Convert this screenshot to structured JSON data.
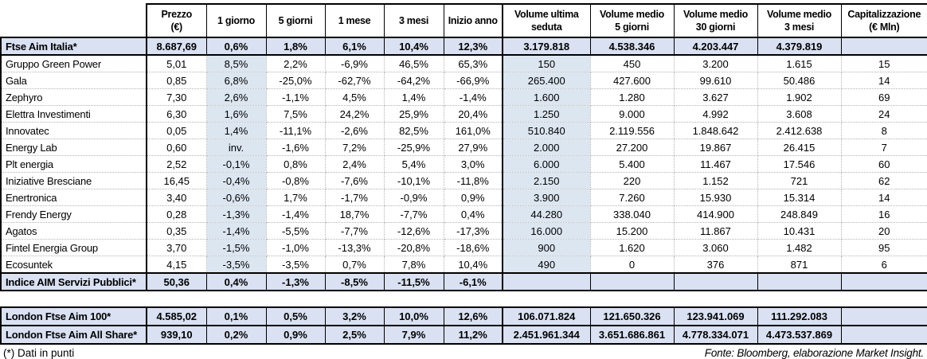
{
  "colors": {
    "row_highlight": "#d9e1f2",
    "col_highlight": "#dce6f1",
    "dotted_border": "#b3b3b3"
  },
  "table": {
    "columns": [
      {
        "key": "prezzo",
        "label": "Prezzo\n(€)"
      },
      {
        "key": "1-giorno",
        "label": "1 giorno"
      },
      {
        "key": "5-giorni",
        "label": "5 giorni"
      },
      {
        "key": "1-mese",
        "label": "1 mese"
      },
      {
        "key": "3-mesi",
        "label": "3 mesi"
      },
      {
        "key": "inizio-anno",
        "label": "Inizio anno"
      },
      {
        "key": "volume-ultima-seduta",
        "label": "Volume ultima\nseduta"
      },
      {
        "key": "volume-medio-5-giorni",
        "label": "Volume medio\n5 giorni"
      },
      {
        "key": "volume-medio-30-giorni",
        "label": "Volume medio\n30 giorni"
      },
      {
        "key": "volume-medio-3-mesi",
        "label": "Volume medio\n3 mesi"
      },
      {
        "key": "capitalizzazione",
        "label": "Capitalizzazione\n(€ Mln)"
      }
    ],
    "main_rows": [
      {
        "label": "Ftse Aim Italia*",
        "highlight": true,
        "values": [
          "8.687,69",
          "0,6%",
          "1,8%",
          "6,1%",
          "10,4%",
          "12,3%",
          "3.179.818",
          "4.538.346",
          "4.203.447",
          "4.379.819",
          ""
        ]
      },
      {
        "label": "Gruppo Green Power",
        "highlight": false,
        "values": [
          "5,01",
          "8,5%",
          "2,2%",
          "-6,9%",
          "46,5%",
          "65,3%",
          "150",
          "450",
          "3.200",
          "1.615",
          "15"
        ]
      },
      {
        "label": "Gala",
        "highlight": false,
        "values": [
          "0,85",
          "6,8%",
          "-25,0%",
          "-62,7%",
          "-64,2%",
          "-66,9%",
          "265.400",
          "427.600",
          "99.610",
          "50.486",
          "14"
        ]
      },
      {
        "label": "Zephyro",
        "highlight": false,
        "values": [
          "7,30",
          "2,6%",
          "-1,1%",
          "4,5%",
          "1,4%",
          "-1,4%",
          "1.600",
          "1.280",
          "3.627",
          "1.902",
          "69"
        ]
      },
      {
        "label": "Elettra Investimenti",
        "highlight": false,
        "values": [
          "6,30",
          "1,6%",
          "7,5%",
          "24,2%",
          "25,9%",
          "20,4%",
          "1.250",
          "9.000",
          "4.992",
          "3.608",
          "24"
        ]
      },
      {
        "label": "Innovatec",
        "highlight": false,
        "values": [
          "0,05",
          "1,4%",
          "-11,1%",
          "-2,6%",
          "82,5%",
          "161,0%",
          "510.840",
          "2.119.556",
          "1.848.642",
          "2.412.638",
          "8"
        ]
      },
      {
        "label": "Energy Lab",
        "highlight": false,
        "values": [
          "0,60",
          "inv.",
          "-1,6%",
          "7,2%",
          "-25,9%",
          "27,9%",
          "2.000",
          "27.200",
          "19.867",
          "26.415",
          "7"
        ]
      },
      {
        "label": "Plt energia",
        "highlight": false,
        "values": [
          "2,52",
          "-0,1%",
          "0,8%",
          "2,4%",
          "5,4%",
          "3,0%",
          "6.000",
          "5.400",
          "11.467",
          "17.546",
          "60"
        ]
      },
      {
        "label": "Iniziative Bresciane",
        "highlight": false,
        "values": [
          "16,45",
          "-0,4%",
          "-0,8%",
          "-7,6%",
          "-10,1%",
          "-11,8%",
          "2.150",
          "220",
          "1.152",
          "721",
          "62"
        ]
      },
      {
        "label": "Enertronica",
        "highlight": false,
        "values": [
          "3,40",
          "-0,6%",
          "1,7%",
          "-1,7%",
          "-0,9%",
          "0,9%",
          "3.900",
          "7.260",
          "15.930",
          "15.314",
          "14"
        ]
      },
      {
        "label": "Frendy Energy",
        "highlight": false,
        "values": [
          "0,28",
          "-1,3%",
          "-1,4%",
          "18,7%",
          "-7,7%",
          "0,4%",
          "44.280",
          "338.040",
          "414.900",
          "248.849",
          "16"
        ]
      },
      {
        "label": "Agatos",
        "highlight": false,
        "values": [
          "0,35",
          "-1,4%",
          "-5,5%",
          "-7,7%",
          "-12,6%",
          "-17,3%",
          "16.000",
          "15.200",
          "11.867",
          "10.431",
          "20"
        ]
      },
      {
        "label": "Fintel Energia Group",
        "highlight": false,
        "values": [
          "3,70",
          "-1,5%",
          "-1,0%",
          "-13,3%",
          "-20,8%",
          "-18,6%",
          "900",
          "1.620",
          "3.060",
          "1.482",
          "95"
        ]
      },
      {
        "label": "Ecosuntek",
        "highlight": false,
        "values": [
          "4,15",
          "-3,5%",
          "-3,5%",
          "0,7%",
          "7,8%",
          "10,4%",
          "490",
          "0",
          "376",
          "871",
          "6"
        ]
      },
      {
        "label": "Indice AIM Servizi Pubblici*",
        "highlight": true,
        "values": [
          "50,36",
          "0,4%",
          "-1,3%",
          "-8,5%",
          "-11,5%",
          "-6,1%",
          "",
          "",
          "",
          "",
          ""
        ]
      }
    ],
    "london_rows": [
      {
        "label": "London Ftse Aim 100*",
        "highlight": true,
        "values": [
          "4.585,02",
          "0,1%",
          "0,5%",
          "3,2%",
          "10,0%",
          "12,6%",
          "106.071.824",
          "121.650.326",
          "123.941.069",
          "111.292.083",
          ""
        ]
      },
      {
        "label": "London Ftse Aim All Share*",
        "highlight": true,
        "values": [
          "939,10",
          "0,2%",
          "0,9%",
          "2,5%",
          "7,9%",
          "11,2%",
          "2.451.961.344",
          "3.651.686.861",
          "4.778.334.071",
          "4.473.537.869",
          ""
        ]
      }
    ]
  },
  "footer": {
    "note": "(*) Dati in punti",
    "source": "Fonte: Bloomberg, elaborazione Market Insight."
  }
}
